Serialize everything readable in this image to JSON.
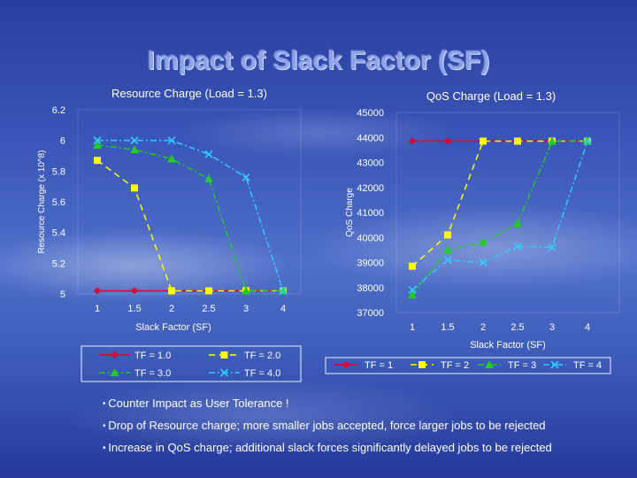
{
  "slide": {
    "title": "Impact of Slack Factor (SF)",
    "bullets": [
      "Counter Impact as User Tolerance !",
      "Drop of Resource charge; more smaller jobs accepted, force larger jobs to be rejected",
      "Increase in QoS charge; additional slack forces significantly delayed jobs to be rejected"
    ]
  },
  "chart_data": [
    {
      "type": "line",
      "title": "Resource Charge (Load = 1.3)",
      "xlabel": "Slack Factor (SF)",
      "ylabel": "Resource Charge (x 10^8)",
      "x": [
        1,
        1.5,
        2,
        2.5,
        3,
        4
      ],
      "xticks": [
        "1",
        "1.5",
        "2",
        "2.5",
        "3",
        "4"
      ],
      "ylim": [
        5,
        6.2
      ],
      "yticks": [
        "5",
        "5.2",
        "5.4",
        "5.6",
        "5.8",
        "6",
        "6.2"
      ],
      "series": [
        {
          "name": "TF = 1.0",
          "color": "#e0002a",
          "marker": "diamond",
          "dash": "solid",
          "values": [
            5.02,
            5.02,
            5.02,
            5.02,
            5.02,
            5.02
          ]
        },
        {
          "name": "TF = 2.0",
          "color": "#ffff00",
          "marker": "square",
          "dash": "dash",
          "values": [
            5.87,
            5.69,
            5.02,
            5.02,
            5.02,
            5.02
          ]
        },
        {
          "name": "TF = 3.0",
          "color": "#22cc22",
          "marker": "triangle",
          "dash": "dashdot",
          "values": [
            5.97,
            5.94,
            5.88,
            5.75,
            5.02,
            5.02
          ]
        },
        {
          "name": "TF = 4.0",
          "color": "#33ccff",
          "marker": "x",
          "dash": "dashdot",
          "values": [
            6.0,
            6.0,
            6.0,
            5.91,
            5.76,
            5.02
          ]
        }
      ],
      "legend": "bottom"
    },
    {
      "type": "line",
      "title": "QoS Charge (Load = 1.3)",
      "xlabel": "Slack Factor (SF)",
      "ylabel": "QoS Charge",
      "x": [
        1,
        1.5,
        2,
        2.5,
        3,
        4
      ],
      "xticks": [
        "1",
        "1.5",
        "2",
        "2.5",
        "3",
        "4"
      ],
      "ylim": [
        37000,
        45000
      ],
      "yticks": [
        "37000",
        "38000",
        "39000",
        "40000",
        "41000",
        "42000",
        "43000",
        "44000",
        "45000"
      ],
      "series": [
        {
          "name": "TF = 1",
          "color": "#e0002a",
          "marker": "diamond",
          "dash": "solid",
          "values": [
            43850,
            43850,
            43850,
            43850,
            43850,
            43850
          ]
        },
        {
          "name": "TF = 2",
          "color": "#ffff00",
          "marker": "square",
          "dash": "dash",
          "values": [
            38850,
            40100,
            43850,
            43850,
            43850,
            43850
          ]
        },
        {
          "name": "TF = 3",
          "color": "#22cc22",
          "marker": "triangle",
          "dash": "dashdot",
          "values": [
            37700,
            39500,
            39800,
            40550,
            43850,
            43850
          ]
        },
        {
          "name": "TF = 4",
          "color": "#33ccff",
          "marker": "x",
          "dash": "dashdot",
          "values": [
            37900,
            39100,
            39000,
            39650,
            39600,
            43850
          ]
        }
      ],
      "legend": "bottom"
    }
  ]
}
